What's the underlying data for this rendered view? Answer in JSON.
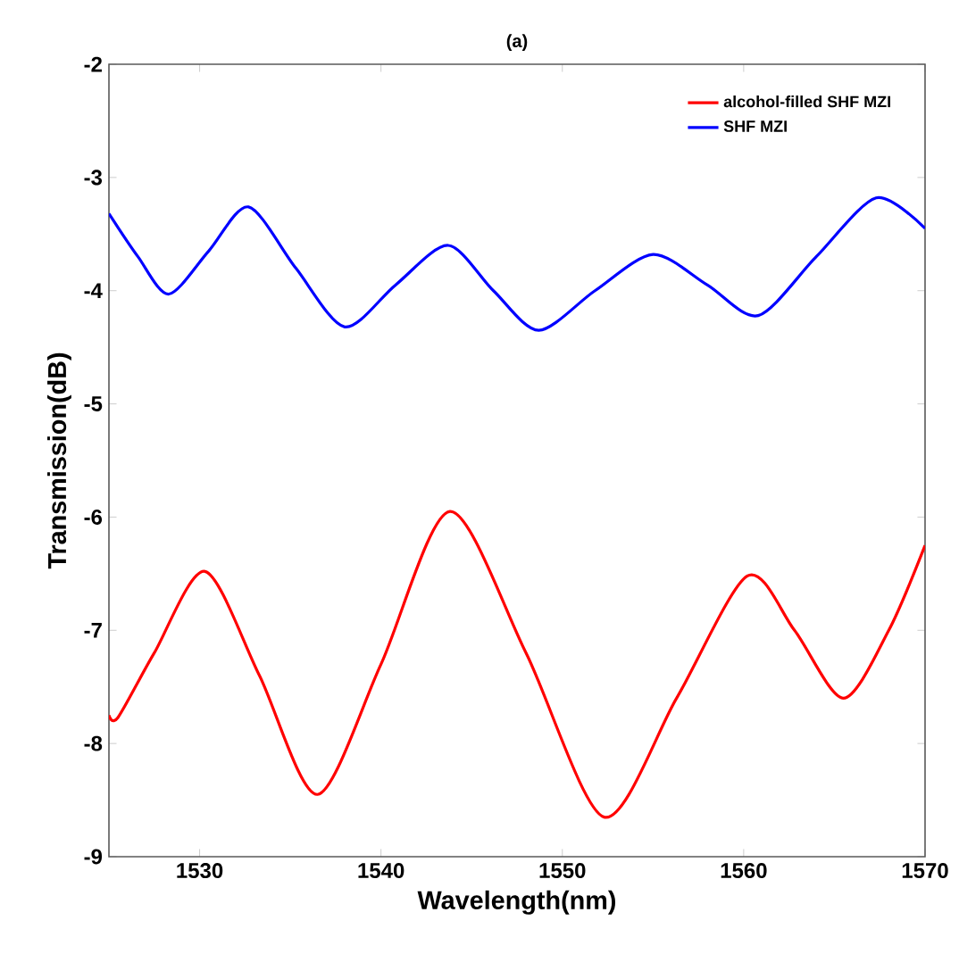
{
  "chart_data": {
    "type": "line",
    "title": "(a)",
    "xlabel": "Wavelength(nm)",
    "ylabel": "Transmission(dB)",
    "xlim": [
      1525,
      1570
    ],
    "xticks": [
      1530,
      1540,
      1550,
      1560,
      1570
    ],
    "ylim": [
      -9,
      -2
    ],
    "yticks": [
      -9,
      -8,
      -7,
      -6,
      -5,
      -4,
      -3,
      -2
    ],
    "legend": "top right",
    "grid": false,
    "series": [
      {
        "name": "alcohol-filled SHF MZI",
        "color": "#ff0000",
        "x": [
          1525,
          1525.5,
          1527.5,
          1530.3,
          1533.3,
          1536.5,
          1540,
          1543.8,
          1548,
          1552.3,
          1556.3,
          1560.2,
          1562.8,
          1565.5,
          1568,
          1570
        ],
        "values": [
          -7.75,
          -7.77,
          -7.2,
          -6.48,
          -7.4,
          -8.45,
          -7.3,
          -5.95,
          -7.2,
          -8.65,
          -7.6,
          -6.52,
          -7.0,
          -7.6,
          -7.0,
          -6.25
        ]
      },
      {
        "name": "SHF MZI",
        "color": "#0000ff",
        "x": [
          1525,
          1526.6,
          1528.3,
          1530.5,
          1532.7,
          1535.3,
          1538,
          1540.8,
          1543.7,
          1546.2,
          1548.7,
          1551.8,
          1555,
          1558,
          1560.8,
          1564,
          1567.3,
          1570
        ],
        "values": [
          -3.32,
          -3.7,
          -4.03,
          -3.65,
          -3.26,
          -3.8,
          -4.32,
          -3.95,
          -3.6,
          -4.0,
          -4.35,
          -4.0,
          -3.68,
          -3.95,
          -4.22,
          -3.7,
          -3.18,
          -3.45
        ]
      }
    ]
  }
}
